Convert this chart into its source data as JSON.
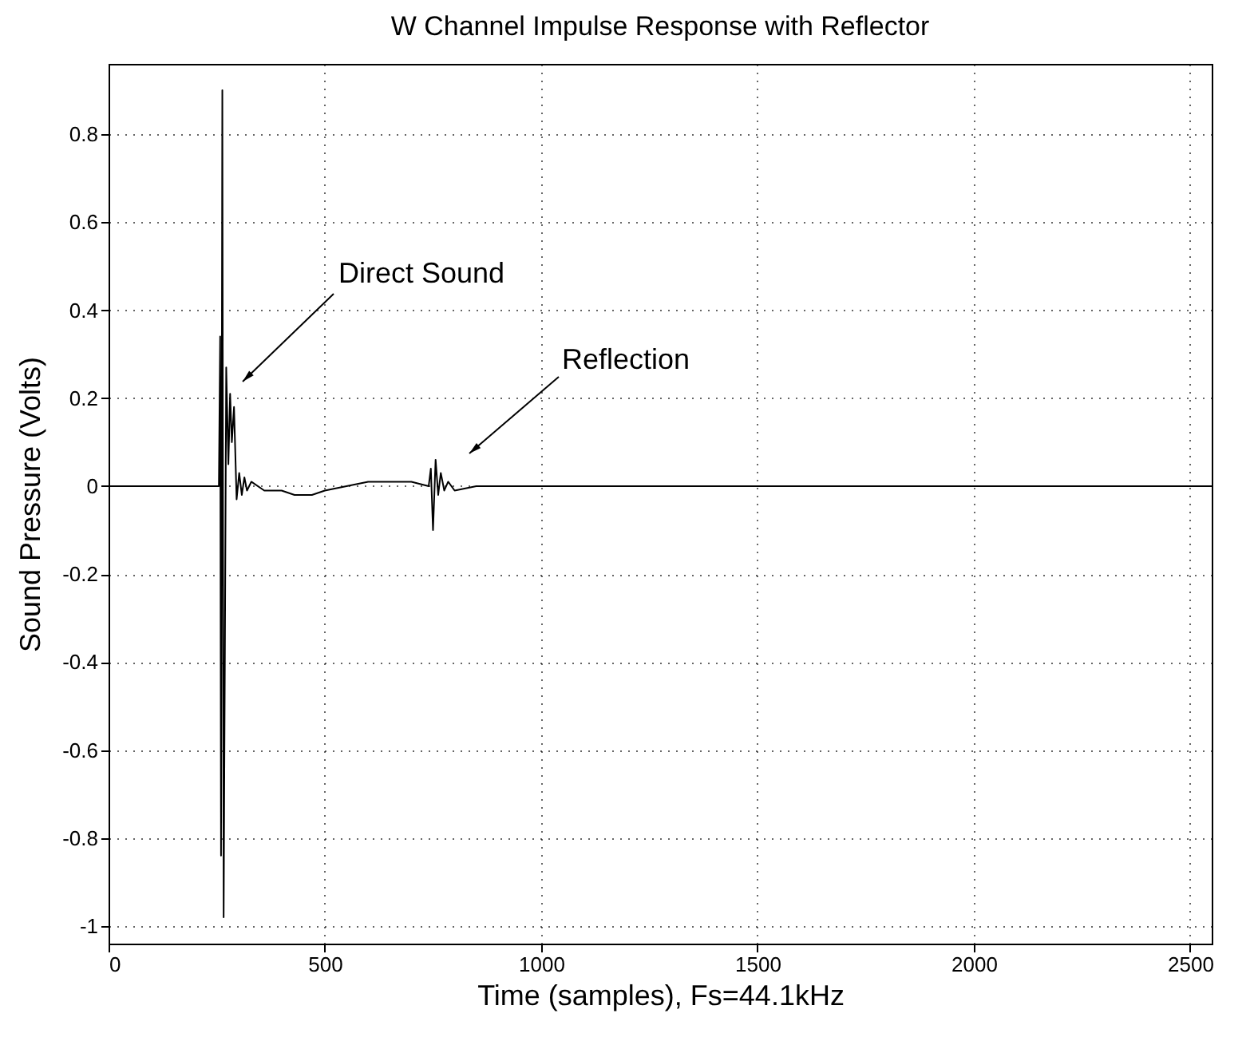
{
  "chart_data": {
    "type": "line",
    "title": "W Channel Impulse Response with Reflector",
    "xlabel": "Time (samples), Fs=44.1kHz",
    "ylabel": "Sound Pressure (Volts)",
    "x": [
      0,
      255,
      258,
      260,
      263,
      266,
      272,
      277,
      281,
      285,
      290,
      296,
      302,
      308,
      314,
      320,
      330,
      360,
      400,
      430,
      470,
      500,
      550,
      600,
      650,
      700,
      740,
      745,
      750,
      756,
      762,
      768,
      776,
      785,
      800,
      850,
      900,
      1000,
      1200,
      1500,
      2000,
      2550
    ],
    "series": [
      {
        "color": "#000000",
        "values": [
          0,
          0,
          0.34,
          -0.84,
          0.9,
          -0.98,
          0.27,
          0.05,
          0.21,
          0.1,
          0.18,
          -0.03,
          0.03,
          -0.02,
          0.02,
          -0.01,
          0.01,
          -0.01,
          -0.01,
          -0.02,
          -0.02,
          -0.01,
          0,
          0.01,
          0.01,
          0.01,
          0,
          0.04,
          -0.1,
          0.06,
          -0.02,
          0.03,
          -0.01,
          0.01,
          -0.01,
          0,
          0,
          0,
          0,
          0,
          0,
          0
        ]
      }
    ],
    "xlim": [
      0,
      2550
    ],
    "ylim": [
      -1.04,
      0.96
    ],
    "xticks": [
      0,
      500,
      1000,
      1500,
      2000,
      2500
    ],
    "yticks": [
      -1,
      -0.8,
      -0.6,
      -0.4,
      -0.2,
      0,
      0.2,
      0.4,
      0.6,
      0.8
    ],
    "grid": true,
    "annotations": [
      "Direct Sound",
      "Reflection"
    ]
  }
}
